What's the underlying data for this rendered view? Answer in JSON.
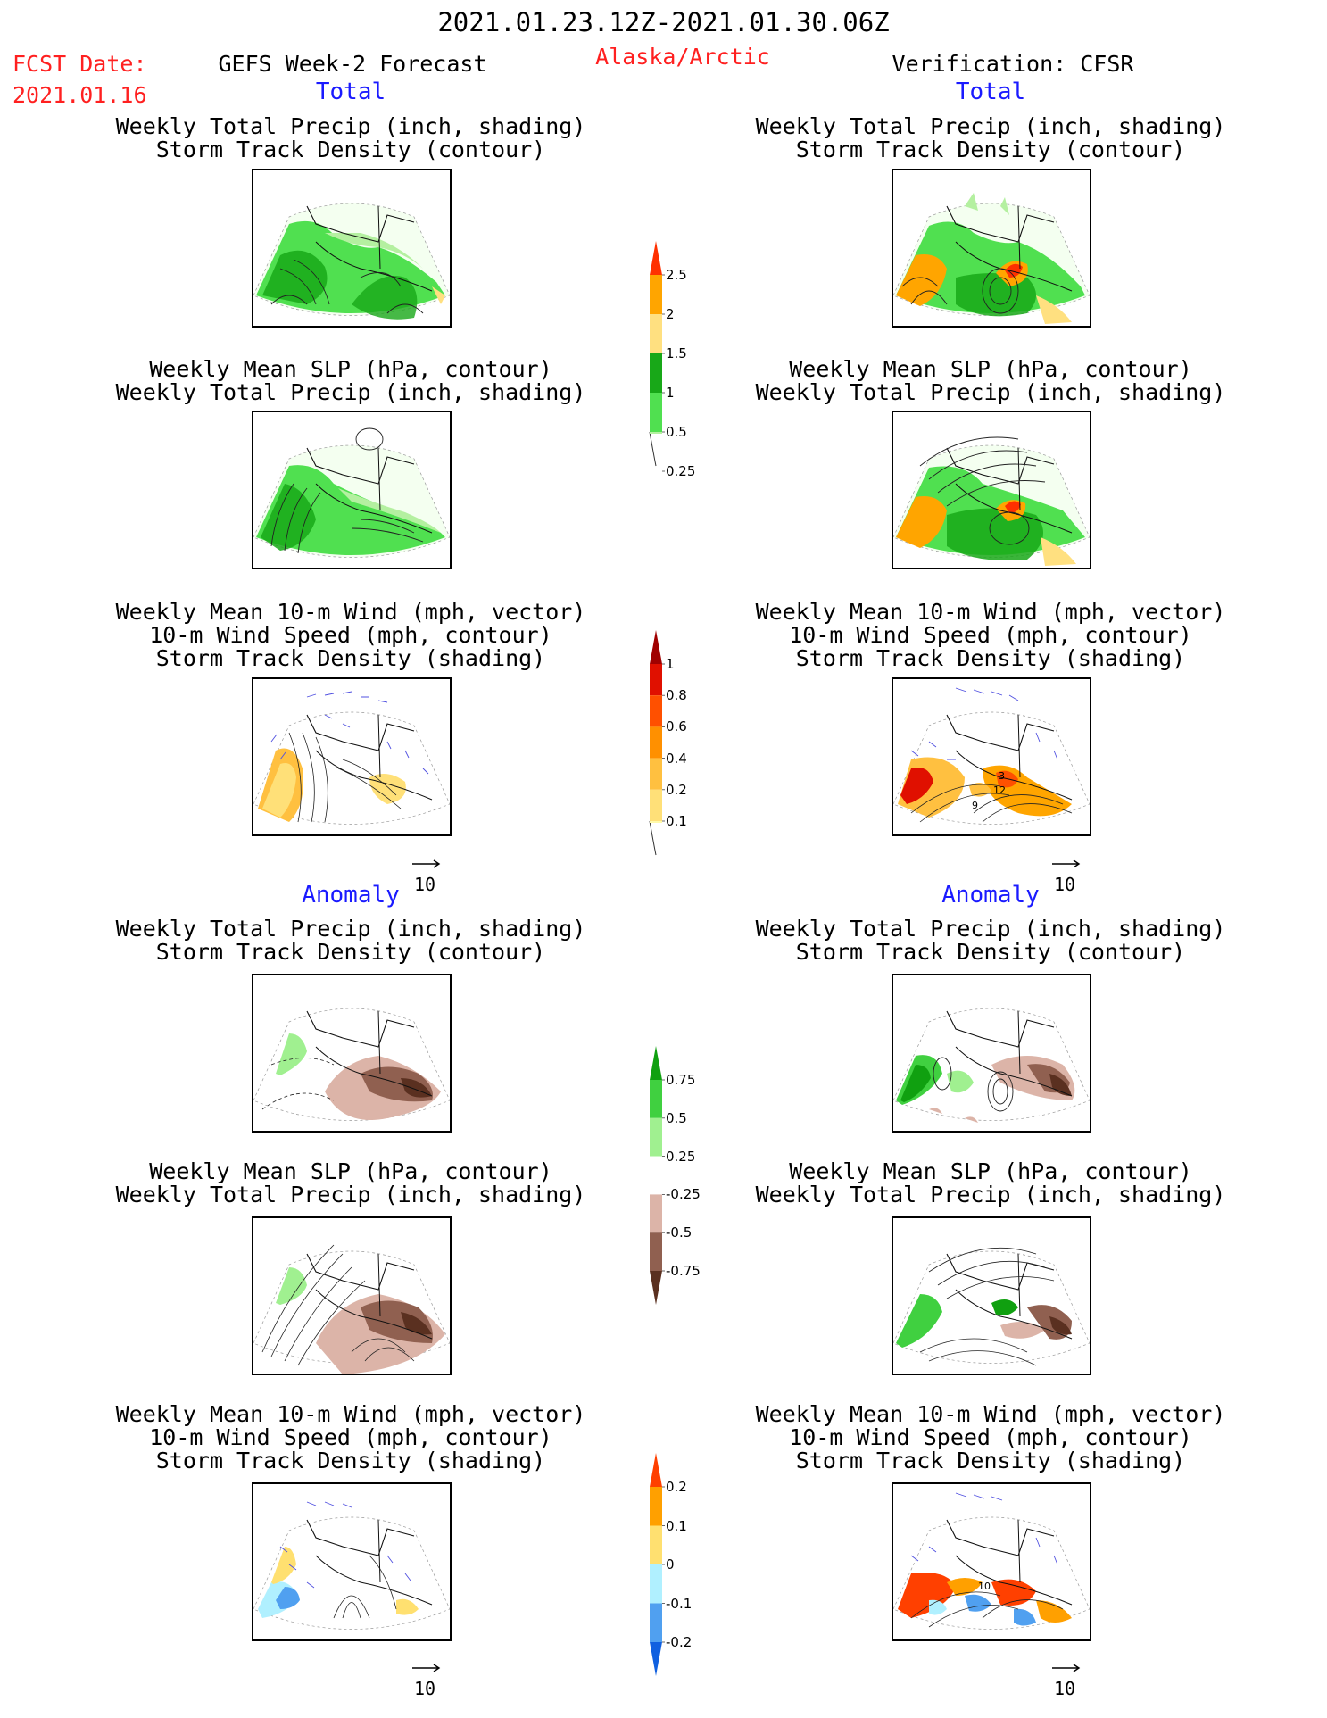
{
  "header": {
    "period": "2021.01.23.12Z-2021.01.30.06Z",
    "fcst_label": "FCST Date:",
    "fcst_date": "2021.01.16",
    "model": "GEFS Week-2 Forecast",
    "region": "Alaska/Arctic",
    "verification": "Verification: CFSR"
  },
  "sections": {
    "total": "Total",
    "anomaly": "Anomaly"
  },
  "panel_titles": {
    "precip_track": [
      "Weekly Total Precip (inch, shading)",
      "Storm Track Density (contour)"
    ],
    "slp_precip": [
      "Weekly Mean SLP (hPa, contour)",
      "Weekly Total Precip (inch, shading)"
    ],
    "wind_track": [
      "Weekly Mean 10-m Wind (mph, vector)",
      "10-m Wind Speed (mph, contour)",
      "Storm Track Density (shading)"
    ]
  },
  "vector_scale": "10",
  "colorbars": {
    "precip_total": {
      "colors": [
        "#b4f0a0",
        "#50e050",
        "#18a818",
        "#ffe080",
        "#ffa500",
        "#ff3000"
      ],
      "labels": [
        "0.25",
        "0.5",
        "1",
        "1.5",
        "2",
        "2.5"
      ]
    },
    "track_total": {
      "colors": [
        "#fffaaa",
        "#ffe078",
        "#ffc040",
        "#ff9000",
        "#ff5000",
        "#e01000",
        "#a00000"
      ],
      "labels": [
        "0.1",
        "0.2",
        "0.4",
        "0.6",
        "0.8",
        "1"
      ]
    },
    "precip_anom": {
      "colors": [
        "#5a3020",
        "#906050",
        "#dcb4a8",
        "#ffffff",
        "#a0f090",
        "#40d040",
        "#10a010"
      ],
      "labels": [
        "-0.75",
        "-0.5",
        "-0.25",
        "0.25",
        "0.5",
        "0.75"
      ]
    },
    "track_anom": {
      "colors": [
        "#1060e0",
        "#50a0f0",
        "#b0f0ff",
        "#ffe070",
        "#ffa000",
        "#ff4000"
      ],
      "labels": [
        "-0.2",
        "-0.1",
        "0",
        "0.1",
        "0.2"
      ]
    }
  },
  "map_labels": {
    "obs_wind_total": [
      "3",
      "12",
      "9"
    ],
    "obs_wind_anom": [
      "10"
    ]
  }
}
